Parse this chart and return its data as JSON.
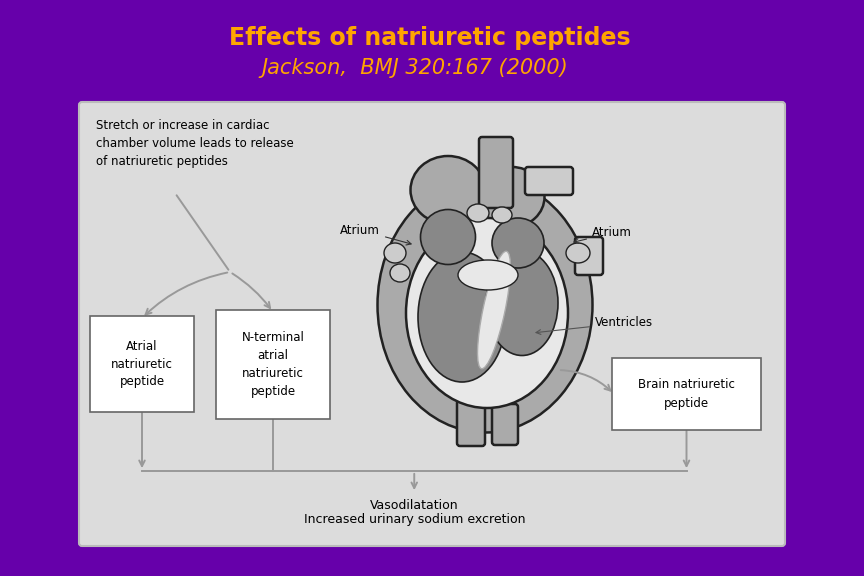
{
  "title_line1": "Effects of natriuretic peptides",
  "title_line2": "Jackson,  BMJ 320:167 (2000)",
  "title_color": "#FFA500",
  "bg_color": "#6600AA",
  "panel_bg": "#DCDCDC",
  "panel_edge": "#AAAAAA",
  "box_bg": "#FFFFFF",
  "box_edge": "#666666",
  "text_color": "#000000",
  "arrow_color": "#999999",
  "top_text": "Stretch or increase in cardiac\nchamber volume leads to release\nof natriuretic peptides",
  "box1_text": "Atrial\nnatriuretic\npeptide",
  "box2_text": "N-terminal\natrial\nnatriuretic\npeptide",
  "box3_text": "Brain natriuretic\npeptide",
  "bottom_text1": "Vasodilatation",
  "bottom_text2": "Increased urinary sodium excretion",
  "label_atrium_left": "Atrium",
  "label_atrium_right": "Atrium",
  "label_ventricles": "Ventricles",
  "heart_dark": "#888888",
  "heart_mid": "#AAAAAA",
  "heart_light": "#CCCCCC",
  "heart_white": "#E8E8E8",
  "heart_edge": "#222222"
}
